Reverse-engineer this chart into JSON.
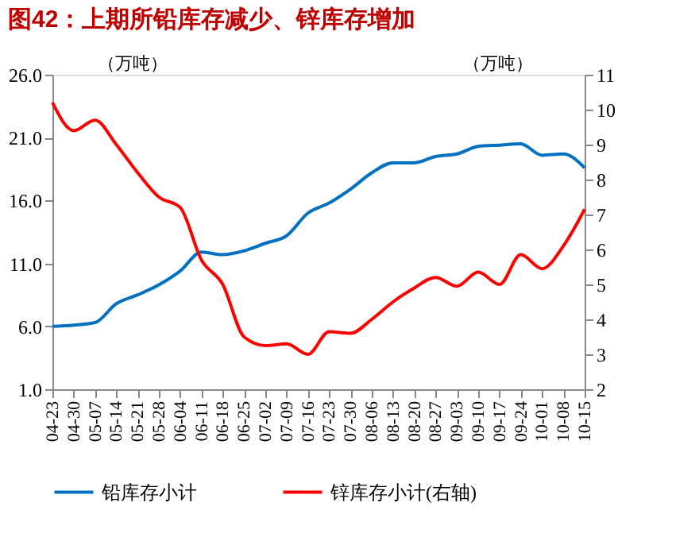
{
  "chart_data": {
    "type": "line",
    "title": "图42：上期所铅库存减少、锌库存增加",
    "ylabel": "（万吨）",
    "y2label": "（万吨）",
    "categories": [
      "04-23",
      "04-30",
      "05-07",
      "05-14",
      "05-21",
      "05-28",
      "06-04",
      "06-11",
      "06-18",
      "06-25",
      "07-02",
      "07-09",
      "07-16",
      "07-23",
      "07-30",
      "08-06",
      "08-13",
      "08-20",
      "08-27",
      "09-03",
      "09-10",
      "09-17",
      "09-24",
      "10-01",
      "10-08",
      "10-15"
    ],
    "series": [
      {
        "name": "铅库存小计",
        "color": "#0070c0",
        "values": [
          6.0,
          6.1,
          6.3,
          7.8,
          8.5,
          9.3,
          10.4,
          11.9,
          11.7,
          12.0,
          12.6,
          13.2,
          15.0,
          15.8,
          16.9,
          18.2,
          19.0,
          19.0,
          19.5,
          19.7,
          20.3,
          20.4,
          20.5,
          19.6,
          19.7,
          18.6
        ]
      },
      {
        "name": "锌库存小计(右轴)",
        "color": "#ff0000",
        "axis": "y2",
        "values": [
          10.2,
          9.4,
          9.7,
          9.0,
          8.2,
          7.5,
          7.2,
          5.7,
          5.0,
          3.5,
          3.25,
          3.3,
          3.0,
          3.65,
          3.6,
          4.0,
          4.5,
          4.9,
          5.2,
          4.95,
          5.35,
          5.0,
          5.85,
          5.45,
          6.1,
          7.15
        ]
      }
    ],
    "ylim": [
      1,
      26
    ],
    "yticks": [
      {
        "value": 1,
        "label": "1.0"
      },
      {
        "value": 6,
        "label": "6.0"
      },
      {
        "value": 11,
        "label": "11.0"
      },
      {
        "value": 16,
        "label": "16.0"
      },
      {
        "value": 21,
        "label": "21.0"
      },
      {
        "value": 26,
        "label": "26.0"
      }
    ],
    "y2lim": [
      2,
      11
    ],
    "y2ticks": [
      2,
      3,
      4,
      5,
      6,
      7,
      8,
      9,
      10,
      11
    ],
    "legend": "bottom",
    "grid": false,
    "marker": "none",
    "line_style": "solid"
  }
}
